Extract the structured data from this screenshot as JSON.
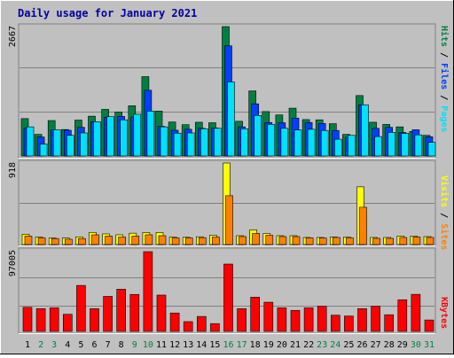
{
  "title": "Daily usage for January 2021",
  "colors": {
    "background": "#c0c0c0",
    "hits": "#008040",
    "files": "#0040ff",
    "pages": "#00e0ff",
    "visits": "#ffff00",
    "sites": "#ff8000",
    "kbytes": "#ff0000",
    "title_text": "#0000a0",
    "day_weekday": "#000000",
    "day_weekend": "#008040"
  },
  "chart_data": [
    {
      "type": "bar",
      "name": "hits-files-pages",
      "ymax_label": "2667",
      "ylim": [
        0,
        2667
      ],
      "legend": [
        "Pages",
        "Files",
        "Hits"
      ],
      "categories": [
        "1",
        "2",
        "3",
        "4",
        "5",
        "6",
        "7",
        "8",
        "9",
        "10",
        "11",
        "12",
        "13",
        "14",
        "15",
        "16",
        "17",
        "18",
        "19",
        "20",
        "21",
        "22",
        "23",
        "24",
        "25",
        "26",
        "27",
        "28",
        "29",
        "30",
        "31"
      ],
      "series": [
        {
          "name": "Hits",
          "values": [
            770,
            445,
            730,
            545,
            740,
            820,
            960,
            905,
            1035,
            1635,
            925,
            700,
            645,
            695,
            685,
            2667,
            715,
            1340,
            915,
            845,
            985,
            750,
            745,
            665,
            445,
            1245,
            695,
            650,
            600,
            505,
            425
          ]
        },
        {
          "name": "Files",
          "values": [
            575,
            390,
            535,
            530,
            590,
            705,
            800,
            815,
            805,
            1355,
            610,
            530,
            550,
            570,
            575,
            2270,
            600,
            1075,
            690,
            685,
            780,
            690,
            670,
            525,
            385,
            1055,
            570,
            590,
            485,
            540,
            395
          ]
        },
        {
          "name": "Pages",
          "values": [
            600,
            245,
            540,
            425,
            475,
            705,
            810,
            745,
            860,
            925,
            600,
            470,
            475,
            560,
            570,
            1525,
            560,
            835,
            650,
            570,
            535,
            550,
            525,
            345,
            425,
            1055,
            400,
            485,
            465,
            435,
            280
          ]
        }
      ]
    },
    {
      "type": "bar",
      "name": "visits-sites",
      "ymax_label": "918",
      "ylim": [
        0,
        918
      ],
      "legend": [
        "Sites",
        "Visits"
      ],
      "categories": [
        "1",
        "2",
        "3",
        "4",
        "5",
        "6",
        "7",
        "8",
        "9",
        "10",
        "11",
        "12",
        "13",
        "14",
        "15",
        "16",
        "17",
        "18",
        "19",
        "20",
        "21",
        "22",
        "23",
        "24",
        "25",
        "26",
        "27",
        "28",
        "29",
        "30",
        "31"
      ],
      "series": [
        {
          "name": "Visits",
          "values": [
            116,
            85,
            75,
            74,
            87,
            137,
            120,
            110,
            128,
            135,
            135,
            85,
            82,
            88,
            105,
            918,
            100,
            165,
            125,
            100,
            100,
            80,
            80,
            85,
            85,
            650,
            80,
            80,
            95,
            95,
            90
          ]
        },
        {
          "name": "Sites",
          "values": [
            95,
            75,
            68,
            60,
            68,
            110,
            95,
            85,
            95,
            110,
            100,
            75,
            74,
            78,
            85,
            550,
            90,
            125,
            105,
            90,
            90,
            75,
            75,
            80,
            75,
            420,
            70,
            70,
            80,
            85,
            80
          ]
        }
      ]
    },
    {
      "type": "bar",
      "name": "kbytes",
      "ymax_label": "97005",
      "ylim": [
        0,
        97005
      ],
      "legend": [
        "KBytes"
      ],
      "categories": [
        "1",
        "2",
        "3",
        "4",
        "5",
        "6",
        "7",
        "8",
        "9",
        "10",
        "11",
        "12",
        "13",
        "14",
        "15",
        "16",
        "17",
        "18",
        "19",
        "20",
        "21",
        "22",
        "23",
        "24",
        "25",
        "26",
        "27",
        "28",
        "29",
        "30",
        "31"
      ],
      "series": [
        {
          "name": "KBytes",
          "values": [
            29300,
            27700,
            28700,
            20800,
            55900,
            27700,
            42600,
            51300,
            45000,
            97005,
            44200,
            22400,
            11900,
            18200,
            9500,
            81900,
            27700,
            41600,
            35500,
            28700,
            25600,
            28700,
            30500,
            19700,
            18700,
            27700,
            30600,
            20300,
            38500,
            45100,
            13900
          ]
        }
      ]
    }
  ],
  "days": [
    "1",
    "2",
    "3",
    "4",
    "5",
    "6",
    "7",
    "8",
    "9",
    "10",
    "11",
    "12",
    "13",
    "14",
    "15",
    "16",
    "17",
    "18",
    "19",
    "20",
    "21",
    "22",
    "23",
    "24",
    "25",
    "26",
    "27",
    "28",
    "29",
    "30",
    "31"
  ],
  "weekend_days": [
    2,
    3,
    9,
    10,
    16,
    17,
    23,
    24,
    30,
    31
  ]
}
